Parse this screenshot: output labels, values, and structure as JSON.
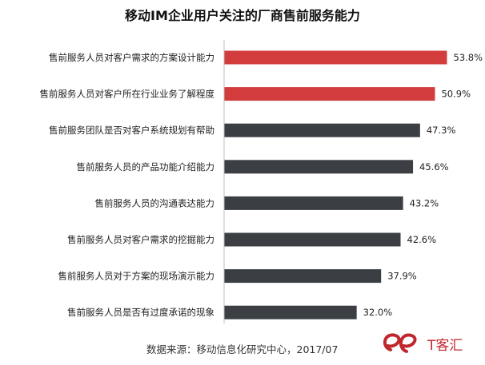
{
  "chart_data": {
    "type": "bar",
    "orientation": "horizontal",
    "title": "移动IM企业用户关注的厂商售前服务能力",
    "categories": [
      "售前服务人员对客户需求的方案设计能力",
      "售前服务人员对客户所在行业业务了解程度",
      "售前服务团队是否对客户系统规划有帮助",
      "售前服务人员的产品功能介绍能力",
      "售前服务人员的沟通表达能力",
      "售前服务人员对客户需求的挖掘能力",
      "售前服务人员对于方案的现场演示能力",
      "售前服务人员是否有过度承诺的现象"
    ],
    "values": [
      53.8,
      50.9,
      47.3,
      45.6,
      43.2,
      42.6,
      37.9,
      32.0
    ],
    "value_labels": [
      "53.8%",
      "50.9%",
      "47.3%",
      "45.6%",
      "43.2%",
      "42.6%",
      "37.9%",
      "32.0%"
    ],
    "xlim": [
      0,
      60
    ],
    "unit": "%",
    "grid": false,
    "colors": {
      "highlight": "#d23c3c",
      "default": "#3b3f44",
      "axis": "#bfbfbf"
    },
    "highlight_indices": [
      0,
      1
    ]
  },
  "source_text": "数据来源：移动信息化研究中心，2017/07",
  "watermark": {
    "text": "T客汇",
    "logo_text": "e",
    "color": "#c0272d"
  }
}
